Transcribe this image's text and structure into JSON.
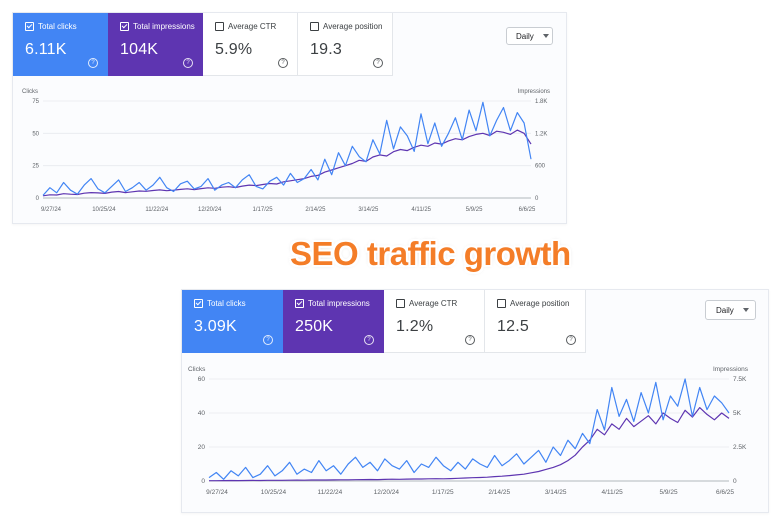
{
  "headline": "SEO traffic growth",
  "colors": {
    "clicks": "#4285f4",
    "impressions": "#5e35b1",
    "accent": "#f47d28"
  },
  "panels": [
    {
      "cards": [
        {
          "label": "Total clicks",
          "value": "6.11K",
          "checked": true,
          "style": "blue"
        },
        {
          "label": "Total impressions",
          "value": "104K",
          "checked": true,
          "style": "purple"
        },
        {
          "label": "Average CTR",
          "value": "5.9%",
          "checked": false,
          "style": "plain"
        },
        {
          "label": "Average position",
          "value": "19.3",
          "checked": false,
          "style": "plain"
        }
      ],
      "period": "Daily"
    },
    {
      "cards": [
        {
          "label": "Total clicks",
          "value": "3.09K",
          "checked": true,
          "style": "blue"
        },
        {
          "label": "Total impressions",
          "value": "250K",
          "checked": true,
          "style": "purple"
        },
        {
          "label": "Average CTR",
          "value": "1.2%",
          "checked": false,
          "style": "plain"
        },
        {
          "label": "Average position",
          "value": "12.5",
          "checked": false,
          "style": "plain"
        }
      ],
      "period": "Daily"
    }
  ],
  "chart_data": [
    {
      "type": "line",
      "ylabel_left": "Clicks",
      "ylabel_right": "Impressions",
      "y_left_ticks": [
        "0",
        "25",
        "50",
        "75"
      ],
      "y_left_range": [
        0,
        75
      ],
      "y_right_ticks": [
        "0",
        "600",
        "1.2K",
        "1.8K"
      ],
      "y_right_range": [
        0,
        1800
      ],
      "x_ticks": [
        "9/27/24",
        "10/25/24",
        "11/22/24",
        "12/20/24",
        "1/17/25",
        "2/14/25",
        "3/14/25",
        "4/11/25",
        "5/9/25",
        "6/6/25"
      ],
      "grid": true,
      "series": [
        {
          "name": "Total clicks",
          "axis": "left",
          "color": "#4285f4",
          "values": [
            2,
            8,
            4,
            12,
            6,
            3,
            10,
            15,
            7,
            4,
            9,
            14,
            5,
            8,
            12,
            6,
            10,
            16,
            8,
            5,
            11,
            13,
            7,
            9,
            15,
            6,
            10,
            12,
            8,
            14,
            18,
            9,
            7,
            13,
            16,
            10,
            19,
            12,
            15,
            22,
            14,
            30,
            18,
            35,
            25,
            40,
            32,
            28,
            45,
            34,
            60,
            38,
            55,
            48,
            36,
            65,
            42,
            58,
            40,
            50,
            62,
            45,
            68,
            52,
            74,
            48,
            60,
            70,
            52,
            66,
            58,
            30
          ]
        },
        {
          "name": "Total impressions",
          "axis": "right",
          "color": "#5e35b1",
          "values": [
            40,
            60,
            55,
            80,
            70,
            65,
            90,
            100,
            95,
            85,
            110,
            120,
            100,
            115,
            130,
            125,
            140,
            150,
            135,
            145,
            160,
            170,
            155,
            175,
            190,
            180,
            200,
            210,
            195,
            220,
            240,
            230,
            250,
            270,
            260,
            300,
            320,
            340,
            360,
            400,
            420,
            480,
            520,
            560,
            600,
            640,
            700,
            680,
            760,
            800,
            780,
            860,
            900,
            880,
            940,
            980,
            960,
            1020,
            1000,
            1060,
            1100,
            1080,
            1140,
            1180,
            1200,
            1160,
            1240,
            1220,
            1180,
            1260,
            1200,
            1000
          ]
        }
      ]
    },
    {
      "type": "line",
      "ylabel_left": "Clicks",
      "ylabel_right": "Impressions",
      "y_left_ticks": [
        "0",
        "20",
        "40",
        "60"
      ],
      "y_left_range": [
        0,
        60
      ],
      "y_right_ticks": [
        "0",
        "2.5K",
        "5K",
        "7.5K"
      ],
      "y_right_range": [
        0,
        7500
      ],
      "x_ticks": [
        "9/27/24",
        "10/25/24",
        "11/22/24",
        "12/20/24",
        "1/17/25",
        "2/14/25",
        "3/14/25",
        "4/11/25",
        "5/9/25",
        "6/6/25"
      ],
      "grid": true,
      "series": [
        {
          "name": "Total clicks",
          "axis": "left",
          "color": "#4285f4",
          "values": [
            2,
            5,
            1,
            6,
            3,
            8,
            2,
            4,
            9,
            3,
            6,
            11,
            4,
            7,
            5,
            12,
            6,
            9,
            4,
            10,
            14,
            8,
            11,
            6,
            13,
            9,
            7,
            12,
            5,
            10,
            8,
            14,
            9,
            6,
            11,
            7,
            13,
            10,
            8,
            15,
            9,
            12,
            16,
            10,
            14,
            18,
            11,
            20,
            15,
            24,
            19,
            28,
            22,
            42,
            30,
            55,
            38,
            48,
            35,
            52,
            40,
            58,
            36,
            50,
            44,
            60,
            38,
            55,
            42,
            50,
            46,
            40
          ]
        },
        {
          "name": "Total impressions",
          "axis": "right",
          "color": "#5e35b1",
          "values": [
            20,
            25,
            30,
            35,
            30,
            40,
            45,
            40,
            50,
            55,
            50,
            60,
            65,
            60,
            70,
            75,
            70,
            80,
            90,
            85,
            95,
            100,
            110,
            105,
            120,
            130,
            125,
            140,
            150,
            145,
            160,
            170,
            165,
            180,
            200,
            220,
            240,
            260,
            280,
            320,
            350,
            400,
            450,
            500,
            600,
            700,
            850,
            1000,
            1200,
            1500,
            1900,
            2500,
            3000,
            3800,
            3400,
            4200,
            3800,
            4600,
            4000,
            4400,
            4800,
            4200,
            5000,
            4600,
            4300,
            5200,
            4700,
            5400,
            4900,
            4500,
            5000,
            4600
          ]
        }
      ]
    }
  ]
}
